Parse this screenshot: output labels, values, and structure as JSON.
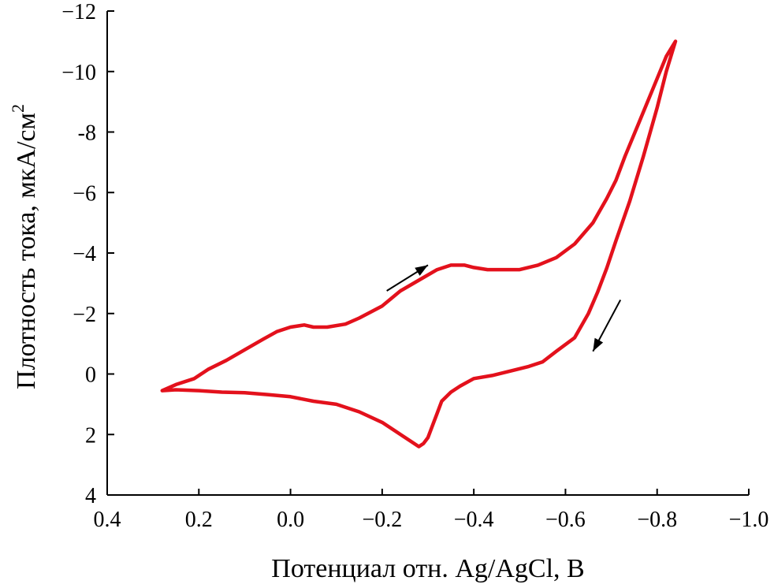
{
  "chart_data": {
    "type": "line",
    "title": "",
    "xlabel": "Потенциал отн. Ag/AgCl, В",
    "ylabel": "Плотность тока, мкА/см",
    "ylabel_superscript": "2",
    "xlim": [
      0.4,
      -1.0
    ],
    "ylim": [
      4,
      -12
    ],
    "x_ticks": [
      0.4,
      0.2,
      0.0,
      -0.2,
      -0.4,
      -0.6,
      -0.8,
      -1.0
    ],
    "x_tick_labels": [
      "0.4",
      "0.2",
      "0.0",
      "−0.2",
      "−0.4",
      "−0.6",
      "−0.8",
      "−1.0"
    ],
    "y_ticks": [
      -12,
      -10,
      -8,
      -6,
      -4,
      -2,
      0,
      2,
      4
    ],
    "y_tick_labels": [
      "−12",
      "−10",
      "-8",
      "−6",
      "−4",
      "−2",
      "0",
      "2",
      "4"
    ],
    "grid": false,
    "series": [
      {
        "color": "#e3111c",
        "x": [
          0.28,
          0.25,
          0.21,
          0.18,
          0.14,
          0.1,
          0.06,
          0.03,
          0.0,
          -0.03,
          -0.05,
          -0.08,
          -0.12,
          -0.15,
          -0.2,
          -0.24,
          -0.28,
          -0.32,
          -0.35,
          -0.38,
          -0.4,
          -0.43,
          -0.47,
          -0.5,
          -0.54,
          -0.58,
          -0.62,
          -0.66,
          -0.69,
          -0.71,
          -0.73,
          -0.76,
          -0.79,
          -0.82,
          -0.84,
          -0.82,
          -0.8,
          -0.77,
          -0.74,
          -0.71,
          -0.69,
          -0.67,
          -0.65,
          -0.62,
          -0.58,
          -0.55,
          -0.52,
          -0.48,
          -0.44,
          -0.4,
          -0.37,
          -0.35,
          -0.33,
          -0.32,
          -0.31,
          -0.3,
          -0.29,
          -0.28,
          -0.26,
          -0.23,
          -0.2,
          -0.15,
          -0.1,
          -0.05,
          0.0,
          0.05,
          0.1,
          0.15,
          0.2,
          0.25,
          0.28
        ],
        "y": [
          0.55,
          0.35,
          0.15,
          -0.15,
          -0.45,
          -0.8,
          -1.15,
          -1.4,
          -1.55,
          -1.62,
          -1.55,
          -1.55,
          -1.65,
          -1.85,
          -2.25,
          -2.75,
          -3.1,
          -3.45,
          -3.6,
          -3.6,
          -3.52,
          -3.45,
          -3.45,
          -3.45,
          -3.6,
          -3.85,
          -4.3,
          -5.0,
          -5.8,
          -6.4,
          -7.2,
          -8.3,
          -9.4,
          -10.5,
          -11.0,
          -10.0,
          -8.8,
          -7.2,
          -5.7,
          -4.4,
          -3.5,
          -2.7,
          -2.0,
          -1.2,
          -0.75,
          -0.4,
          -0.25,
          -0.1,
          0.05,
          0.15,
          0.4,
          0.6,
          0.9,
          1.3,
          1.7,
          2.1,
          2.3,
          2.4,
          2.2,
          1.9,
          1.6,
          1.25,
          1.0,
          0.9,
          0.75,
          0.68,
          0.62,
          0.6,
          0.55,
          0.52,
          0.55
        ]
      }
    ],
    "annotations": [
      {
        "type": "arrow",
        "from": [
          -0.21,
          -2.75
        ],
        "to": [
          -0.3,
          -3.6
        ]
      },
      {
        "type": "arrow",
        "from": [
          -0.72,
          -2.45
        ],
        "to": [
          -0.66,
          -0.75
        ]
      }
    ]
  }
}
